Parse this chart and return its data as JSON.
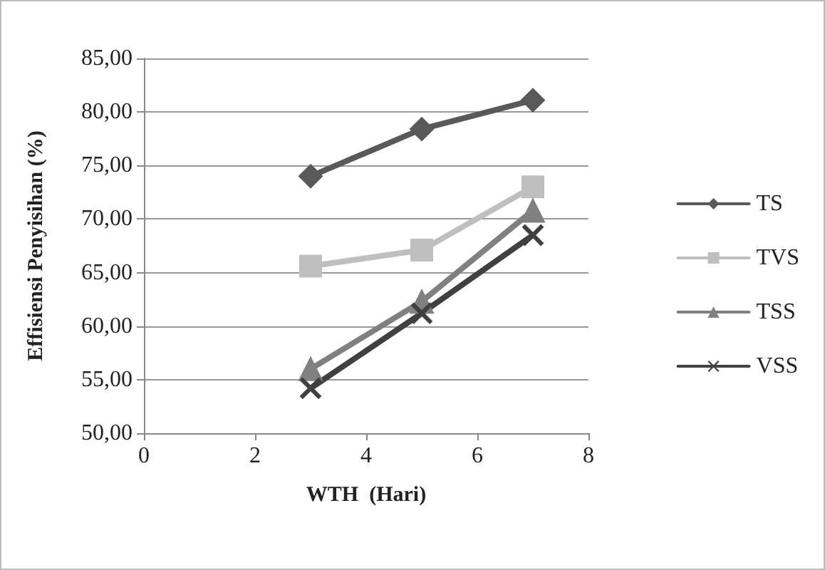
{
  "chart_data": {
    "type": "line",
    "xlabel": "WTH  (Hari)",
    "ylabel": "Effisiensi Penyisihan (%)",
    "xlim": [
      0,
      8
    ],
    "xticks": [
      0,
      2,
      4,
      6,
      8
    ],
    "ylim": [
      50,
      85
    ],
    "yticks": [
      {
        "value": 50,
        "label": "50,00"
      },
      {
        "value": 55,
        "label": "55,00"
      },
      {
        "value": 60,
        "label": "60,00"
      },
      {
        "value": 65,
        "label": "65,00"
      },
      {
        "value": 70,
        "label": "70,00"
      },
      {
        "value": 75,
        "label": "75,00"
      },
      {
        "value": 80,
        "label": "80,00"
      },
      {
        "value": 85,
        "label": "85,00"
      }
    ],
    "grid": "y",
    "legend": "right",
    "x": [
      3,
      5,
      7
    ],
    "series": [
      {
        "name": "TS",
        "color": "#595959",
        "marker": "diamond",
        "values": [
          74.0,
          78.4,
          81.1
        ]
      },
      {
        "name": "TVS",
        "color": "#bfbfbf",
        "marker": "square",
        "values": [
          65.6,
          67.1,
          73.0
        ]
      },
      {
        "name": "TSS",
        "color": "#808080",
        "marker": "triangle",
        "values": [
          56.0,
          62.3,
          70.8
        ]
      },
      {
        "name": "VSS",
        "color": "#404040",
        "marker": "cross",
        "values": [
          54.2,
          61.2,
          68.5
        ]
      }
    ]
  }
}
